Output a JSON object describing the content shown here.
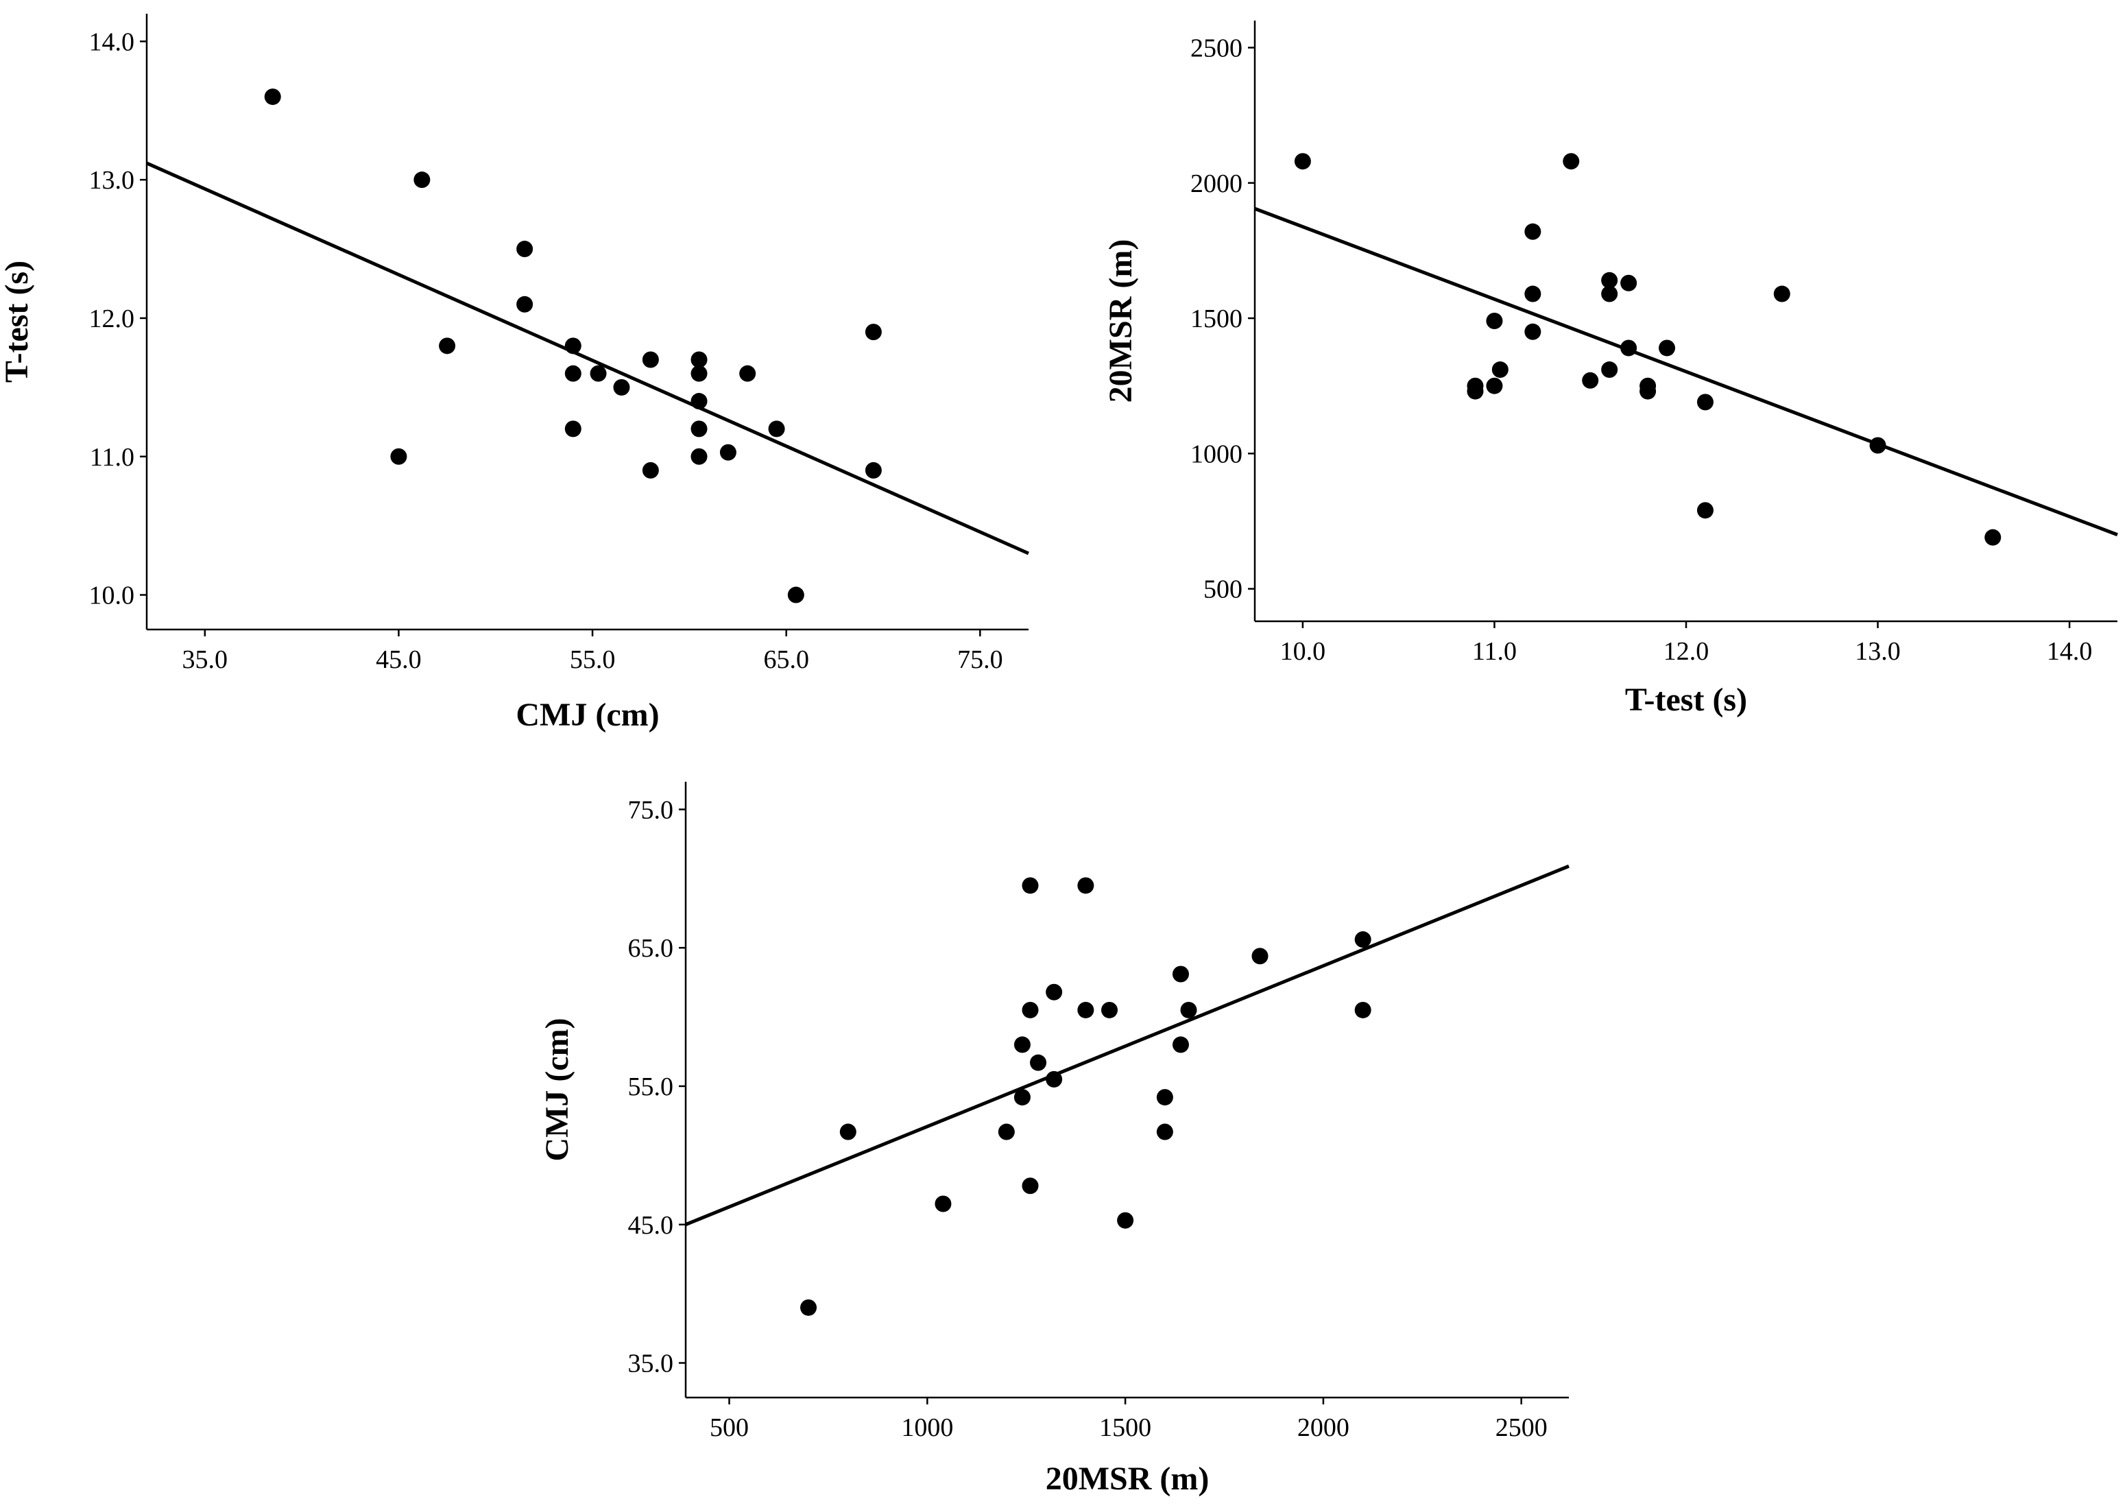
{
  "chart_data": [
    {
      "type": "scatter",
      "id": "cmj-vs-ttest",
      "xlabel": "CMJ (cm)",
      "ylabel": "T-test (s)",
      "xlim": [
        32.0,
        77.5
      ],
      "ylim": [
        9.75,
        14.2
      ],
      "xticks": [
        35.0,
        45.0,
        55.0,
        65.0,
        75.0
      ],
      "yticks": [
        10.0,
        11.0,
        12.0,
        13.0,
        14.0
      ],
      "xtick_labels": [
        "35.0",
        "45.0",
        "55.0",
        "65.0",
        "75.0"
      ],
      "ytick_labels": [
        "10.0",
        "11.0",
        "12.0",
        "13.0",
        "14.0"
      ],
      "fit_line": {
        "x": [
          32.0,
          77.5
        ],
        "y": [
          13.12,
          10.3
        ]
      },
      "points": [
        [
          38.5,
          13.6
        ],
        [
          46.2,
          13.0
        ],
        [
          47.5,
          11.8
        ],
        [
          45.0,
          11.0
        ],
        [
          51.5,
          12.5
        ],
        [
          51.5,
          12.1
        ],
        [
          54.0,
          11.8
        ],
        [
          54.0,
          11.6
        ],
        [
          55.3,
          11.6
        ],
        [
          54.0,
          11.2
        ],
        [
          56.5,
          11.5
        ],
        [
          58.0,
          11.7
        ],
        [
          58.0,
          10.9
        ],
        [
          60.5,
          11.7
        ],
        [
          60.5,
          11.6
        ],
        [
          60.5,
          11.4
        ],
        [
          60.5,
          11.2
        ],
        [
          60.5,
          11.0
        ],
        [
          62.0,
          11.03
        ],
        [
          63.0,
          11.6
        ],
        [
          64.5,
          11.2
        ],
        [
          65.5,
          10.0
        ],
        [
          69.5,
          11.9
        ],
        [
          69.5,
          10.9
        ]
      ]
    },
    {
      "type": "scatter",
      "id": "ttest-vs-20msr",
      "xlabel": "T-test (s)",
      "ylabel": "20MSR (m)",
      "xlim": [
        9.75,
        14.25
      ],
      "ylim": [
        380,
        2600
      ],
      "xticks": [
        10.0,
        11.0,
        12.0,
        13.0,
        14.0
      ],
      "yticks": [
        500,
        1000,
        1500,
        2000,
        2500
      ],
      "xtick_labels": [
        "10.0",
        "11.0",
        "12.0",
        "13.0",
        "14.0"
      ],
      "ytick_labels": [
        "500",
        "1000",
        "1500",
        "2000",
        "2500"
      ],
      "fit_line": {
        "x": [
          9.75,
          14.25
        ],
        "y": [
          1905,
          700
        ]
      },
      "points": [
        [
          10.0,
          2080
        ],
        [
          11.4,
          2080
        ],
        [
          11.2,
          1820
        ],
        [
          11.6,
          1640
        ],
        [
          11.6,
          1590
        ],
        [
          11.7,
          1630
        ],
        [
          11.2,
          1590
        ],
        [
          12.5,
          1590
        ],
        [
          11.0,
          1490
        ],
        [
          11.2,
          1450
        ],
        [
          11.03,
          1310
        ],
        [
          11.6,
          1310
        ],
        [
          11.7,
          1390
        ],
        [
          11.9,
          1390
        ],
        [
          10.9,
          1250
        ],
        [
          10.9,
          1230
        ],
        [
          11.0,
          1250
        ],
        [
          11.5,
          1270
        ],
        [
          11.8,
          1250
        ],
        [
          11.8,
          1230
        ],
        [
          12.1,
          1190
        ],
        [
          13.0,
          1030
        ],
        [
          12.1,
          790
        ],
        [
          13.6,
          690
        ]
      ]
    },
    {
      "type": "scatter",
      "id": "20msr-vs-cmj",
      "xlabel": "20MSR (m)",
      "ylabel": "CMJ (cm)",
      "xlim": [
        390,
        2620
      ],
      "ylim": [
        32.5,
        77.0
      ],
      "xticks": [
        500,
        1000,
        1500,
        2000,
        2500
      ],
      "yticks": [
        35.0,
        45.0,
        55.0,
        65.0,
        75.0
      ],
      "xtick_labels": [
        "500",
        "1000",
        "1500",
        "2000",
        "2500"
      ],
      "ytick_labels": [
        "35.0",
        "45.0",
        "55.0",
        "65.0",
        "75.0"
      ],
      "fit_line": {
        "x": [
          390,
          2620
        ],
        "y": [
          45.0,
          70.9
        ]
      },
      "points": [
        [
          700,
          39.0
        ],
        [
          800,
          51.7
        ],
        [
          1040,
          46.5
        ],
        [
          1200,
          51.7
        ],
        [
          1240,
          54.2
        ],
        [
          1240,
          58.0
        ],
        [
          1260,
          60.5
        ],
        [
          1260,
          69.5
        ],
        [
          1260,
          47.8
        ],
        [
          1280,
          56.7
        ],
        [
          1320,
          55.5
        ],
        [
          1320,
          61.8
        ],
        [
          1400,
          69.5
        ],
        [
          1400,
          60.5
        ],
        [
          1460,
          60.5
        ],
        [
          1500,
          45.3
        ],
        [
          1600,
          54.2
        ],
        [
          1600,
          51.7
        ],
        [
          1640,
          63.1
        ],
        [
          1640,
          58.0
        ],
        [
          1660,
          60.5
        ],
        [
          1840,
          64.4
        ],
        [
          2100,
          65.6
        ],
        [
          2100,
          60.5
        ]
      ]
    }
  ]
}
